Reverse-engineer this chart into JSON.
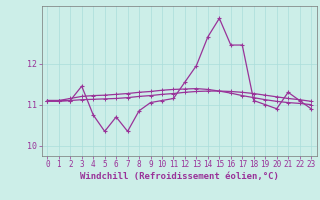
{
  "xlabel": "Windchill (Refroidissement éolien,°C)",
  "background_color": "#cceee8",
  "grid_color": "#aaddda",
  "line_color": "#993399",
  "xlim": [
    -0.5,
    23.5
  ],
  "ylim": [
    9.75,
    13.4
  ],
  "yticks": [
    10,
    11,
    12
  ],
  "xticks": [
    0,
    1,
    2,
    3,
    4,
    5,
    6,
    7,
    8,
    9,
    10,
    11,
    12,
    13,
    14,
    15,
    16,
    17,
    18,
    19,
    20,
    21,
    22,
    23
  ],
  "series1_x": [
    0,
    1,
    2,
    3,
    4,
    5,
    6,
    7,
    8,
    9,
    10,
    11,
    12,
    13,
    14,
    15,
    16,
    17,
    18,
    19,
    20,
    21,
    22,
    23
  ],
  "series1_y": [
    11.1,
    11.1,
    11.1,
    11.45,
    10.75,
    10.35,
    10.7,
    10.35,
    10.85,
    11.05,
    11.1,
    11.15,
    11.55,
    11.95,
    12.65,
    13.1,
    12.45,
    12.45,
    11.1,
    11.0,
    10.9,
    11.3,
    11.1,
    10.9
  ],
  "series2_x": [
    0,
    1,
    2,
    3,
    4,
    5,
    6,
    7,
    8,
    9,
    10,
    11,
    12,
    13,
    14,
    15,
    16,
    17,
    18,
    19,
    20,
    21,
    22,
    23
  ],
  "series2_y": [
    11.1,
    11.1,
    11.15,
    11.2,
    11.22,
    11.23,
    11.25,
    11.27,
    11.3,
    11.32,
    11.35,
    11.37,
    11.38,
    11.39,
    11.37,
    11.33,
    11.28,
    11.22,
    11.17,
    11.12,
    11.08,
    11.05,
    11.03,
    11.0
  ],
  "series3_x": [
    0,
    1,
    2,
    3,
    4,
    5,
    6,
    7,
    8,
    9,
    10,
    11,
    12,
    13,
    14,
    15,
    16,
    17,
    18,
    19,
    20,
    21,
    22,
    23
  ],
  "series3_y": [
    11.08,
    11.08,
    11.1,
    11.12,
    11.13,
    11.14,
    11.15,
    11.17,
    11.2,
    11.22,
    11.25,
    11.27,
    11.3,
    11.32,
    11.33,
    11.33,
    11.32,
    11.3,
    11.27,
    11.23,
    11.19,
    11.15,
    11.12,
    11.08
  ],
  "tick_fontsize": 5.5,
  "xlabel_fontsize": 6.5,
  "linewidth": 0.9,
  "markersize": 2.8
}
